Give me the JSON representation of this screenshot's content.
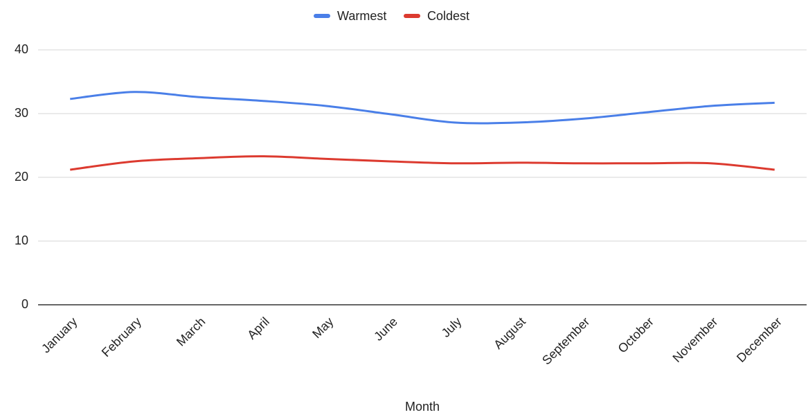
{
  "chart_data": {
    "type": "line",
    "x_label": "Month",
    "categories": [
      "January",
      "February",
      "March",
      "April",
      "May",
      "June",
      "July",
      "August",
      "September",
      "October",
      "November",
      "December"
    ],
    "series": [
      {
        "name": "Warmest",
        "color": "#4a7fe8",
        "values": [
          32.3,
          33.4,
          32.6,
          32.0,
          31.2,
          29.9,
          28.6,
          28.6,
          29.2,
          30.2,
          31.2,
          31.7
        ]
      },
      {
        "name": "Coldest",
        "color": "#dc3a2f",
        "values": [
          21.2,
          22.5,
          23.0,
          23.3,
          22.9,
          22.5,
          22.2,
          22.3,
          22.2,
          22.2,
          22.2,
          21.2
        ]
      }
    ],
    "ylim": [
      0,
      40
    ],
    "yticks": [
      0,
      10,
      20,
      30,
      40
    ],
    "grid": true,
    "legend": "top"
  }
}
